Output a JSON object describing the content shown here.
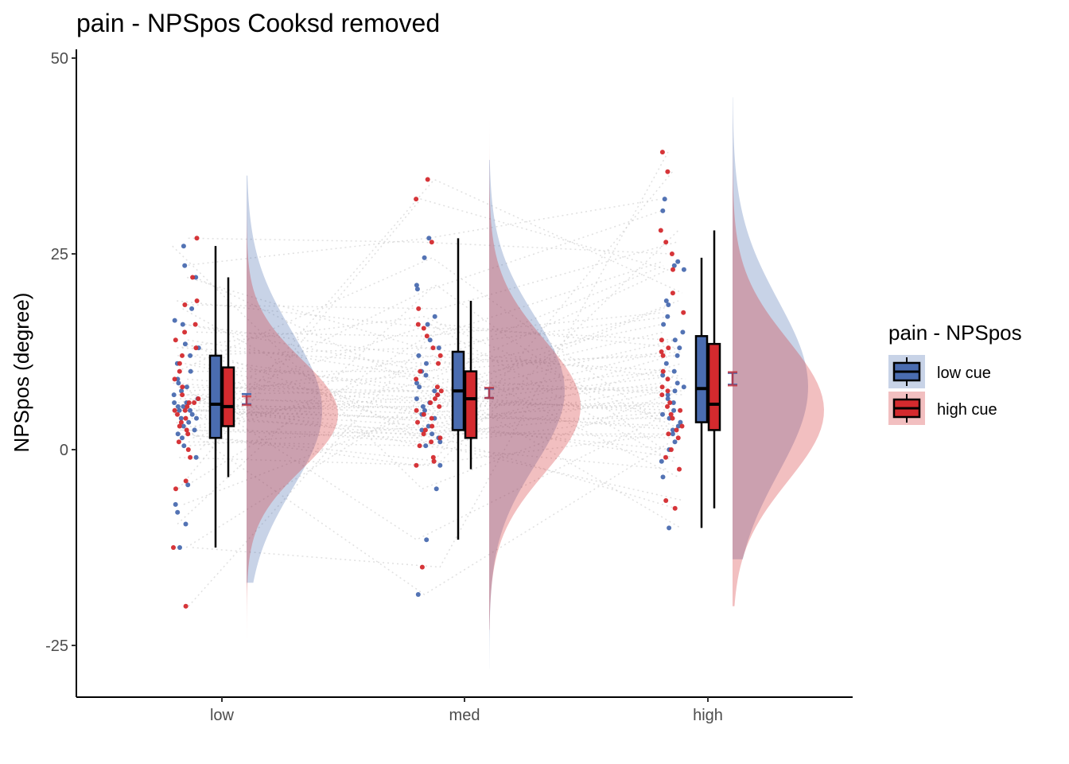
{
  "chart_data": {
    "type": "raincloud",
    "title": "pain  - NPSpos Cooksd removed",
    "xlabel": "",
    "ylabel": "NPSpos (degree)",
    "ylim": [
      -31,
      51
    ],
    "yticks": [
      -25,
      0,
      25,
      50
    ],
    "categories": [
      "low",
      "med",
      "high"
    ],
    "legend": {
      "title": "pain  - NPSpos",
      "position": "right",
      "entries": [
        "low cue",
        "high cue"
      ]
    },
    "colors": {
      "low cue": "#4a6cb0",
      "high cue": "#d42a2e",
      "low cue fill": "#4a6cb0",
      "high cue fill": "#d42a2e",
      "connector": "#cccccc"
    },
    "series": [
      {
        "name": "low cue",
        "boxplots": [
          {
            "category": "low",
            "min": -12.5,
            "q1": 1.5,
            "median": 5.8,
            "q3": 12.0,
            "max": 26.0
          },
          {
            "category": "med",
            "min": -11.5,
            "q1": 2.5,
            "median": 7.5,
            "q3": 12.5,
            "max": 27.0
          },
          {
            "category": "high",
            "min": -10.0,
            "q1": 3.5,
            "median": 7.8,
            "q3": 14.5,
            "max": 24.5
          }
        ],
        "mean_se": [
          {
            "category": "low",
            "mean": 6.5,
            "lo": 5.8,
            "hi": 7.1
          },
          {
            "category": "med",
            "mean": 7.3,
            "lo": 6.6,
            "hi": 7.8
          },
          {
            "category": "high",
            "mean": 9.0,
            "lo": 8.3,
            "hi": 9.8
          }
        ],
        "density": [
          {
            "category": "low",
            "mean": 5.0,
            "sd": 10.0,
            "range": [
              -17,
              35
            ]
          },
          {
            "category": "med",
            "mean": 7.5,
            "sd": 9.5,
            "range": [
              -28,
              37
            ]
          },
          {
            "category": "high",
            "mean": 8.0,
            "sd": 11.0,
            "range": [
              -14,
              45
            ]
          }
        ],
        "points": {
          "low": [
            23.5,
            22,
            18,
            16.5,
            16,
            13.5,
            13,
            12,
            11,
            10,
            9,
            8.5,
            8,
            7.5,
            7,
            6.5,
            6,
            6,
            5.5,
            5.5,
            5,
            5,
            4.5,
            4,
            4,
            3.5,
            3,
            2.5,
            2,
            1.5,
            0.5,
            -1,
            -4.5,
            -7,
            -8,
            -9.5,
            -12.5,
            26
          ],
          "med": [
            27,
            24.5,
            21,
            20.5,
            17,
            16,
            14,
            13,
            12,
            11,
            10,
            9.5,
            8.5,
            8,
            7.5,
            7,
            6.5,
            6,
            5.5,
            5,
            4.5,
            4,
            3,
            2.5,
            2,
            1.5,
            1,
            0.5,
            -2,
            -5,
            -11.5,
            -18.5
          ],
          "high": [
            32,
            30.5,
            24,
            23.5,
            23,
            19,
            18.5,
            17,
            16,
            15,
            14,
            13,
            12,
            11,
            10,
            9.5,
            8.5,
            8,
            7.5,
            7,
            6.5,
            6,
            5,
            4.5,
            4,
            3.5,
            3,
            2.5,
            2,
            1,
            0,
            -1.5,
            -3.5,
            -10
          ]
        }
      },
      {
        "name": "high cue",
        "boxplots": [
          {
            "category": "low",
            "min": -3.5,
            "q1": 3.0,
            "median": 5.5,
            "q3": 10.5,
            "max": 22.0
          },
          {
            "category": "med",
            "min": -2.5,
            "q1": 1.5,
            "median": 6.5,
            "q3": 10.0,
            "max": 19.0
          },
          {
            "category": "high",
            "min": -7.5,
            "q1": 2.5,
            "median": 5.8,
            "q3": 13.5,
            "max": 28.0
          }
        ],
        "mean_se": [
          {
            "category": "low",
            "mean": 6.3,
            "lo": 5.7,
            "hi": 6.8
          },
          {
            "category": "med",
            "mean": 7.2,
            "lo": 6.6,
            "hi": 7.9
          },
          {
            "category": "high",
            "mean": 9.0,
            "lo": 8.2,
            "hi": 9.9
          }
        ],
        "density": [
          {
            "category": "low",
            "mean": 4.5,
            "sd": 7.0,
            "range": [
              -26,
              33
            ]
          },
          {
            "category": "med",
            "mean": 5.5,
            "sd": 8.5,
            "range": [
              -23,
              42
            ]
          },
          {
            "category": "high",
            "mean": 5.0,
            "sd": 9.0,
            "range": [
              -20,
              47
            ]
          }
        ],
        "points": {
          "low": [
            27,
            22,
            19,
            18.5,
            16,
            15,
            14,
            13,
            12,
            11,
            10,
            9,
            8,
            7,
            6.5,
            6,
            6,
            5.5,
            5,
            5,
            4.5,
            4,
            3.5,
            3,
            2.5,
            2,
            1,
            0,
            -1,
            -4,
            -5,
            -12.5,
            -20
          ],
          "med": [
            34.5,
            32,
            26.5,
            18,
            16,
            15.5,
            14.5,
            13,
            12,
            11,
            10,
            9,
            8,
            7.5,
            7,
            6.5,
            6,
            5.5,
            5,
            4.5,
            4,
            3.5,
            3,
            2.5,
            2,
            1.5,
            1,
            0.5,
            -1,
            -1.5,
            -2,
            -15
          ],
          "high": [
            38,
            35.5,
            28,
            26.5,
            25,
            23,
            20,
            17.5,
            14,
            13,
            12.5,
            12,
            10,
            9,
            8,
            7.5,
            7,
            6,
            5.5,
            5,
            4.5,
            4,
            3,
            2.5,
            2,
            1.5,
            0,
            -1,
            -2.5,
            -6.5,
            -7.5
          ]
        }
      }
    ]
  }
}
